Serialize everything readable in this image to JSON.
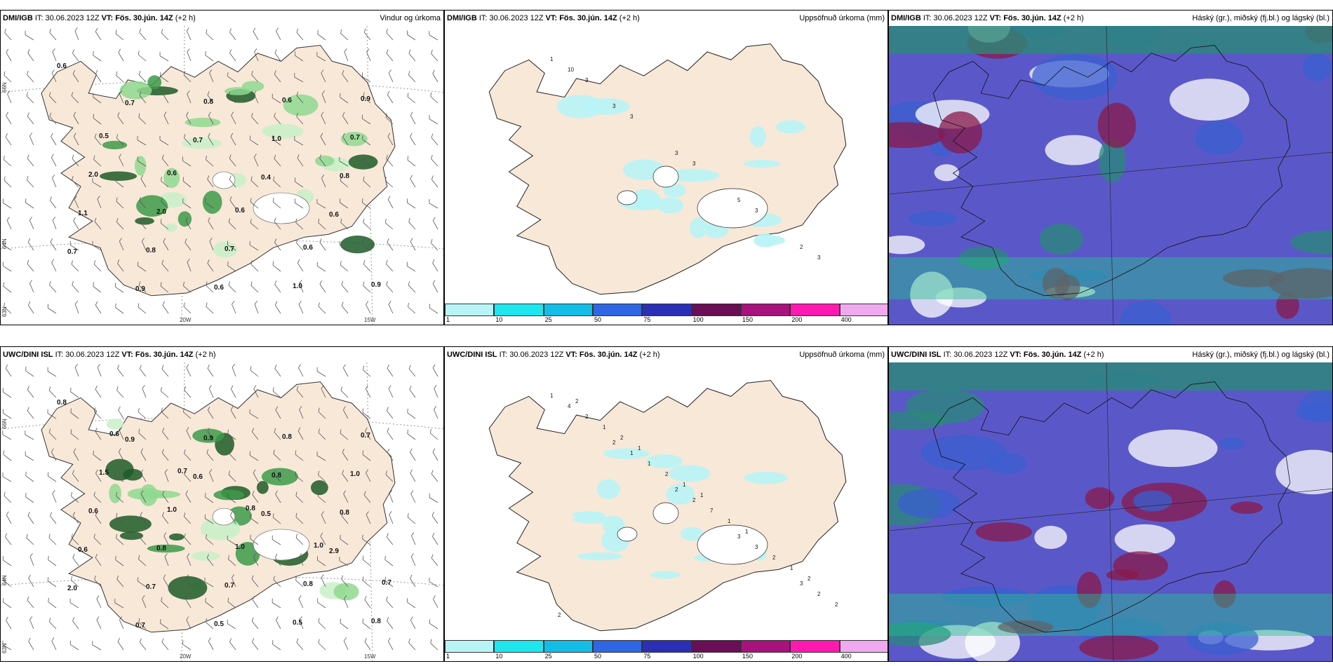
{
  "rows": [
    {
      "wind": {
        "source": "DMI/IGB",
        "it": "IT: 30.06.2023 12Z",
        "vt": "VT: Fös. 30.jún. 14Z",
        "offset": "(+2 h)",
        "title": "Vindur og úrkoma",
        "lat_labels": [
          "66N",
          "64N",
          "63N"
        ],
        "lon_labels": [
          "20W",
          "15W"
        ],
        "values": [
          "0.6",
          "0.7",
          "0.7",
          "0.4",
          "0.6",
          "0.7",
          "0.9",
          "0.8",
          "1.0",
          "0.8",
          "1.1",
          "0.8",
          "0.6",
          "0.6",
          "0.7",
          "2.0",
          "2.0",
          "0.7",
          "1.0",
          "0.9",
          "0.5",
          "0.6",
          "0.6",
          "0.6",
          "0.9"
        ]
      },
      "precip": {
        "source": "DMI/IGB",
        "it": "IT: 30.06.2023 12Z",
        "vt": "VT: Fös. 30.jún. 14Z",
        "offset": "(+2 h)",
        "title": "Uppsöfnuð úrkoma (mm)",
        "values": [
          "1",
          "3",
          "3",
          "5",
          "2",
          "10",
          "3",
          "3",
          "3",
          "3",
          "3"
        ]
      },
      "cloud": {
        "source": "DMI/IGB",
        "it": "IT: 30.06.2023 12Z",
        "vt": "VT: Fös. 30.jún. 14Z",
        "offset": "(+2 h)",
        "title": "Háský (gr.), miðský (fj.bl.) og lágský (bl.)"
      }
    },
    {
      "wind": {
        "source": "UWC/DINI ISL",
        "it": "IT: 30.06.2023 12Z",
        "vt": "VT: Fös. 30.jún. 14Z",
        "offset": "(+2 h)",
        "title": "",
        "lat_labels": [
          "66N",
          "64N",
          "63N"
        ],
        "lon_labels": [
          "20W",
          "15W"
        ],
        "values": [
          "0.8",
          "0.9",
          "0.6",
          "0.5",
          "2.9",
          "2.0",
          "0.7",
          "0.9",
          "0.8",
          "0.8",
          "0.6",
          "0.7",
          "0.5",
          "0.8",
          "1.0",
          "0.6",
          "0.8",
          "0.7",
          "0.5",
          "0.7",
          "1.5",
          "1.0",
          "1.0",
          "0.8",
          "0.8",
          "0.6",
          "0.7",
          "0.8",
          "1.0",
          "0.7"
        ]
      },
      "precip": {
        "source": "UWC/DINI ISL",
        "it": "IT: 30.06.2023 12Z",
        "vt": "VT: Fös. 30.jún. 14Z",
        "offset": "(+2 h)",
        "title": "Uppsöfnuð úrkoma (mm)",
        "values": [
          "1",
          "2",
          "2",
          "3",
          "3",
          "4",
          "1",
          "2",
          "3",
          "2",
          "2",
          "1",
          "7",
          "2",
          "2",
          "1",
          "2",
          "1",
          "1",
          "2",
          "2",
          "1",
          "1",
          "2",
          "2",
          "1",
          "1"
        ]
      },
      "cloud": {
        "source": "UWC/DINI ISL",
        "it": "IT: 30.06.2023 12Z",
        "vt": "VT: Fös. 30.jún. 14Z",
        "offset": "(+2 h)",
        "title": "Háský (gr.), miðský (fj.bl.) og lágský (bl.)"
      }
    }
  ],
  "colorbar": {
    "labels": [
      "1",
      "10",
      "25",
      "50",
      "75",
      "100",
      "150",
      "200",
      "400"
    ],
    "colors": [
      "#b8f4f6",
      "#1de6ee",
      "#12bde6",
      "#2f66e4",
      "#2b2fb6",
      "#6b0d57",
      "#a8127d",
      "#ff19b0",
      "#f0a9ee"
    ]
  },
  "colors": {
    "land": "#f8e8d8",
    "sea": "#ffffff",
    "cloud_high": "#8a1a4a",
    "cloud_mid": "#5a58c8",
    "cloud_low": "#2a8a78"
  }
}
